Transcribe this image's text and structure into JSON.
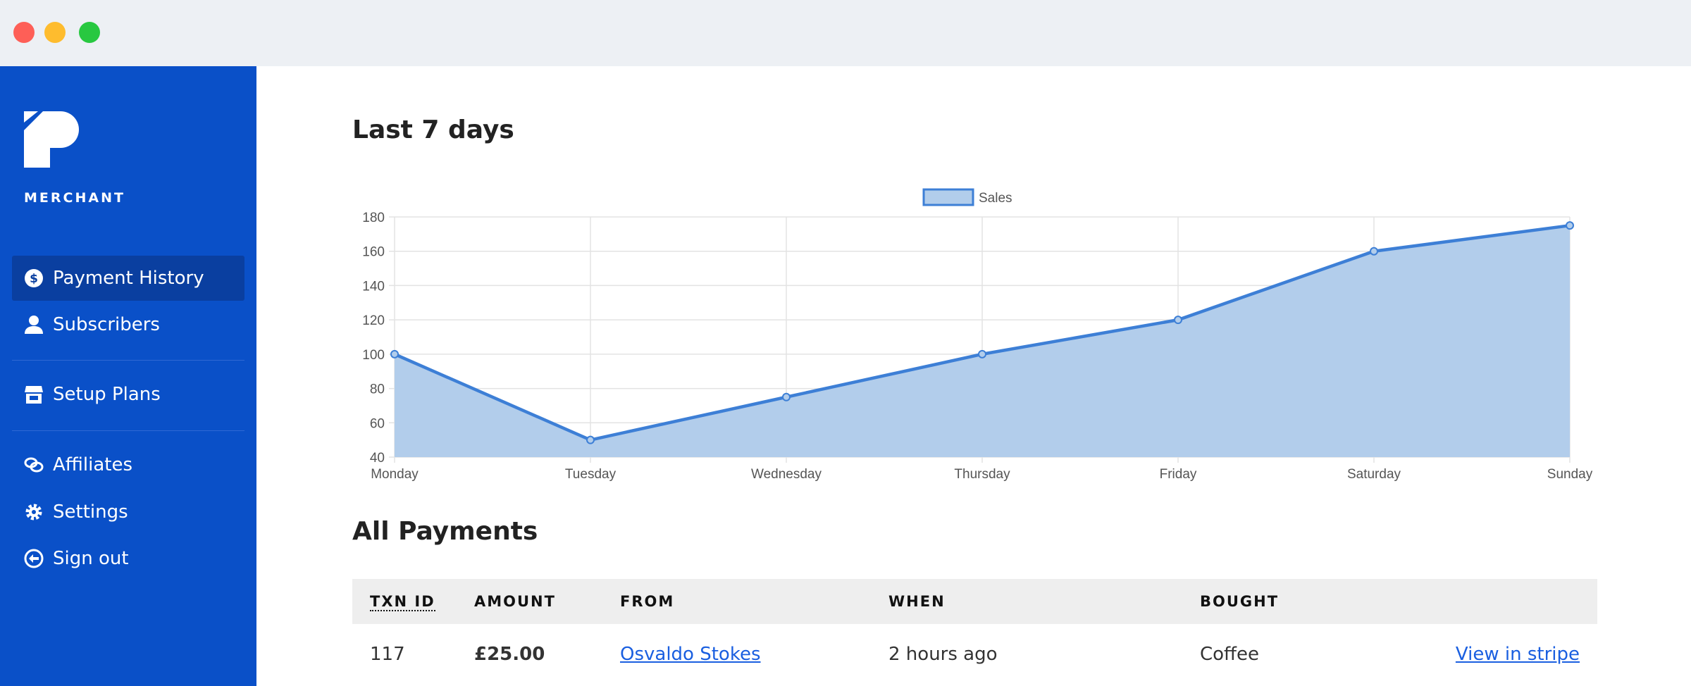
{
  "window": {
    "traffic_lights": [
      "#fe5f57",
      "#febc2e",
      "#28c840"
    ]
  },
  "sidebar": {
    "brand": "MERCHANT",
    "bg": "#0a50c8",
    "items": [
      {
        "label": "Payment History",
        "icon": "dollar-circle-icon",
        "active": true
      },
      {
        "label": "Subscribers",
        "icon": "user-icon"
      },
      {
        "label": "Setup Plans",
        "icon": "store-icon"
      },
      {
        "label": "Affiliates",
        "icon": "link-icon"
      },
      {
        "label": "Settings",
        "icon": "gear-icon"
      },
      {
        "label": "Sign out",
        "icon": "arrow-left-circle-icon"
      }
    ]
  },
  "main": {
    "chart_title": "Last 7 days",
    "payments_title": "All Payments"
  },
  "chart_data": {
    "type": "area",
    "categories": [
      "Monday",
      "Tuesday",
      "Wednesday",
      "Thursday",
      "Friday",
      "Saturday",
      "Sunday"
    ],
    "series": [
      {
        "name": "Sales",
        "values": [
          100,
          50,
          75,
          100,
          120,
          160,
          175
        ]
      }
    ],
    "ylim": [
      40,
      180
    ],
    "yticks": [
      40,
      60,
      80,
      100,
      120,
      140,
      160,
      180
    ],
    "grid": true,
    "legend": "top",
    "line_color": "#3d7fd6",
    "fill_color": "#b2cdeb"
  },
  "table": {
    "headers": [
      "TXN ID",
      "AMOUNT",
      "FROM",
      "WHEN",
      "BOUGHT",
      ""
    ],
    "rows": [
      {
        "id": "117",
        "amount": "£25.00",
        "from": "Osvaldo Stokes",
        "when": "2 hours ago",
        "bought": "Coffee",
        "action": "View in stripe"
      }
    ]
  }
}
